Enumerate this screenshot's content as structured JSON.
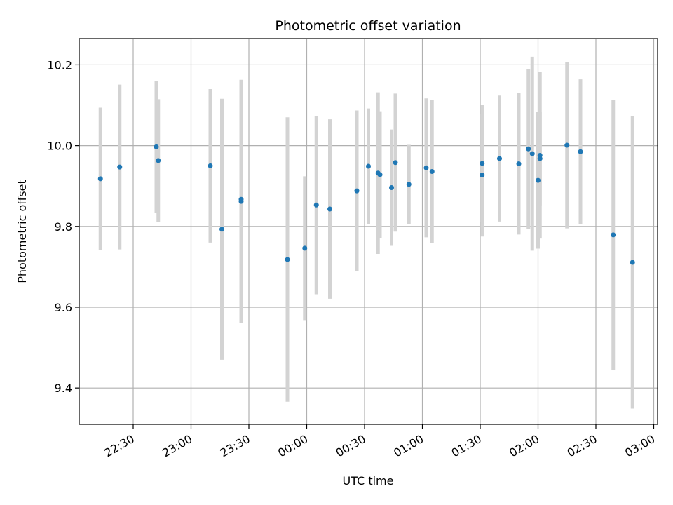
{
  "chart_data": {
    "type": "scatter",
    "title": "Photometric offset variation",
    "xlabel": "UTC time",
    "ylabel": "Photometric offset",
    "x_axis_kind": "time",
    "xlim": [
      "22:02",
      "03:02"
    ],
    "ylim": [
      9.31,
      10.265
    ],
    "x_ticks": [
      "22:30",
      "23:00",
      "23:30",
      "00:00",
      "00:30",
      "01:00",
      "01:30",
      "02:00",
      "02:30",
      "03:00"
    ],
    "y_ticks": [
      9.4,
      9.6,
      9.8,
      10.0,
      10.2
    ],
    "grid": true,
    "marker_color": "#1f77b4",
    "errorbar_color": "#d3d3d3",
    "points": [
      {
        "time": "22:13",
        "y": 9.918,
        "err": 0.176
      },
      {
        "time": "22:23",
        "y": 9.947,
        "err": 0.204
      },
      {
        "time": "22:42",
        "y": 9.997,
        "err": 0.163
      },
      {
        "time": "22:43",
        "y": 9.963,
        "err": 0.152
      },
      {
        "time": "23:10",
        "y": 9.95,
        "err": 0.19
      },
      {
        "time": "23:16",
        "y": 9.793,
        "err": 0.323
      },
      {
        "time": "23:26",
        "y": 9.862,
        "err": 0.301
      },
      {
        "time": "23:26",
        "y": 9.867,
        "err": 0.238
      },
      {
        "time": "23:50",
        "y": 9.718,
        "err": 0.352
      },
      {
        "time": "23:59",
        "y": 9.746,
        "err": 0.178
      },
      {
        "time": "00:05",
        "y": 9.853,
        "err": 0.221
      },
      {
        "time": "00:12",
        "y": 9.843,
        "err": 0.222
      },
      {
        "time": "00:26",
        "y": 9.888,
        "err": 0.199
      },
      {
        "time": "00:32",
        "y": 9.949,
        "err": 0.143
      },
      {
        "time": "00:37",
        "y": 9.932,
        "err": 0.2
      },
      {
        "time": "00:38",
        "y": 9.928,
        "err": 0.157
      },
      {
        "time": "00:44",
        "y": 9.896,
        "err": 0.144
      },
      {
        "time": "00:46",
        "y": 9.958,
        "err": 0.171
      },
      {
        "time": "00:53",
        "y": 9.904,
        "err": 0.098
      },
      {
        "time": "01:02",
        "y": 9.945,
        "err": 0.172
      },
      {
        "time": "01:05",
        "y": 9.936,
        "err": 0.178
      },
      {
        "time": "01:31",
        "y": 9.956,
        "err": 0.145
      },
      {
        "time": "01:31",
        "y": 9.927,
        "err": 0.152
      },
      {
        "time": "01:40",
        "y": 9.968,
        "err": 0.156
      },
      {
        "time": "01:50",
        "y": 9.955,
        "err": 0.175
      },
      {
        "time": "01:55",
        "y": 9.992,
        "err": 0.198
      },
      {
        "time": "01:57",
        "y": 9.98,
        "err": 0.24
      },
      {
        "time": "02:00",
        "y": 9.914,
        "err": 0.169
      },
      {
        "time": "02:01",
        "y": 9.968,
        "err": 0.116
      },
      {
        "time": "02:01",
        "y": 9.976,
        "err": 0.206
      },
      {
        "time": "02:15",
        "y": 10.001,
        "err": 0.206
      },
      {
        "time": "02:22",
        "y": 9.985,
        "err": 0.179
      },
      {
        "time": "02:39",
        "y": 9.779,
        "err": 0.335
      },
      {
        "time": "02:49",
        "y": 9.711,
        "err": 0.362
      }
    ]
  }
}
